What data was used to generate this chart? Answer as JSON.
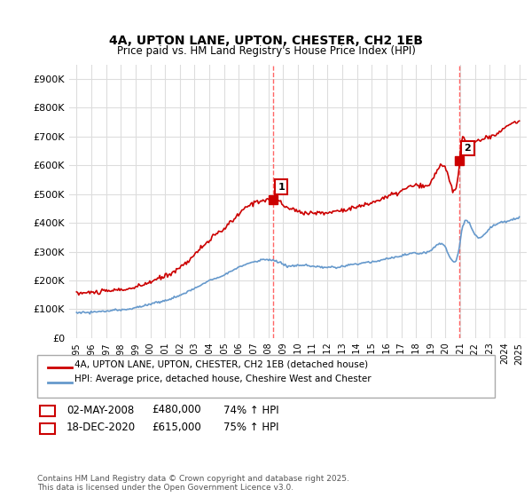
{
  "title_line1": "4A, UPTON LANE, UPTON, CHESTER, CH2 1EB",
  "title_line2": "Price paid vs. HM Land Registry's House Price Index (HPI)",
  "legend_line1": "4A, UPTON LANE, UPTON, CHESTER, CH2 1EB (detached house)",
  "legend_line2": "HPI: Average price, detached house, Cheshire West and Chester",
  "annotation1_label": "1",
  "annotation1_date": "02-MAY-2008",
  "annotation1_price": "£480,000",
  "annotation1_hpi": "74% ↑ HPI",
  "annotation2_label": "2",
  "annotation2_date": "18-DEC-2020",
  "annotation2_price": "£615,000",
  "annotation2_hpi": "75% ↑ HPI",
  "footnote": "Contains HM Land Registry data © Crown copyright and database right 2025.\nThis data is licensed under the Open Government Licence v3.0.",
  "red_color": "#cc0000",
  "blue_color": "#6699cc",
  "vline_color": "#ff6666",
  "background_color": "#ffffff",
  "grid_color": "#dddddd",
  "ylim": [
    0,
    950000
  ],
  "yticks": [
    0,
    100000,
    200000,
    300000,
    400000,
    500000,
    600000,
    700000,
    800000,
    900000
  ],
  "ytick_labels": [
    "£0",
    "£100K",
    "£200K",
    "£300K",
    "£400K",
    "£500K",
    "£600K",
    "£700K",
    "£800K",
    "£900K"
  ],
  "xmin_year": 1995,
  "xmax_year": 2025.5,
  "xticks": [
    1995,
    1996,
    1997,
    1998,
    1999,
    2000,
    2001,
    2002,
    2003,
    2004,
    2005,
    2006,
    2007,
    2008,
    2009,
    2010,
    2011,
    2012,
    2013,
    2014,
    2015,
    2016,
    2017,
    2018,
    2019,
    2020,
    2021,
    2022,
    2023,
    2024,
    2025
  ],
  "sale1_x": 2008.33,
  "sale1_y": 480000,
  "sale2_x": 2020.96,
  "sale2_y": 615000
}
